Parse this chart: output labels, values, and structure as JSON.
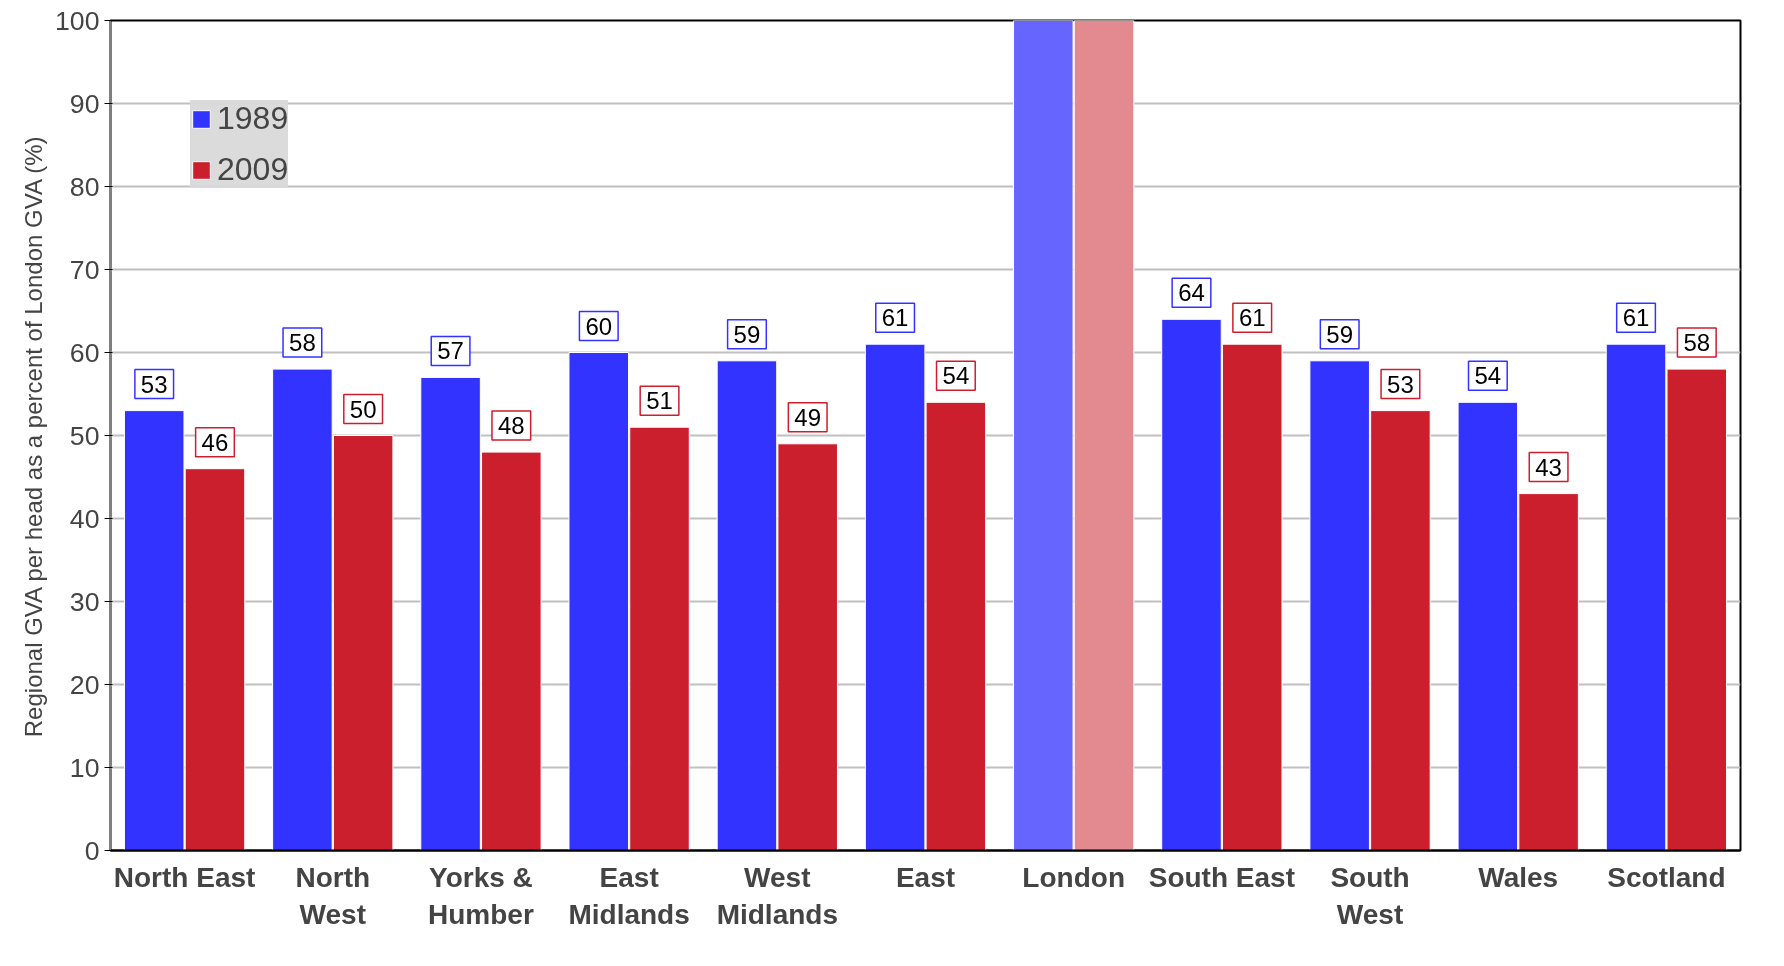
{
  "chart_data": {
    "type": "bar",
    "ylabel": "Regional GVA per head as a percent of London GVA (%)",
    "categories": [
      "North East",
      "North\nWest",
      "Yorks &\nHumber",
      "East\nMidlands",
      "West\nMidlands",
      "East",
      "London",
      "South East",
      "South\nWest",
      "Wales",
      "Scotland"
    ],
    "series": [
      {
        "name": "1989",
        "color": "#3333ff",
        "colors": [
          "#3333ff",
          "#3333ff",
          "#3333ff",
          "#3333ff",
          "#3333ff",
          "#3333ff",
          "#6666ff",
          "#3333ff",
          "#3333ff",
          "#3333ff",
          "#3333ff"
        ],
        "values": [
          53,
          58,
          57,
          60,
          59,
          61,
          100,
          64,
          59,
          54,
          61
        ],
        "value_labels": [
          "53",
          "58",
          "57",
          "60",
          "59",
          "61",
          null,
          "64",
          "59",
          "54",
          "61"
        ]
      },
      {
        "name": "2009",
        "color": "#cc1f2e",
        "colors": [
          "#cc1f2e",
          "#cc1f2e",
          "#cc1f2e",
          "#cc1f2e",
          "#cc1f2e",
          "#cc1f2e",
          "#e38a91",
          "#cc1f2e",
          "#cc1f2e",
          "#cc1f2e",
          "#cc1f2e"
        ],
        "values": [
          46,
          50,
          48,
          51,
          49,
          54,
          100,
          61,
          53,
          43,
          58
        ],
        "value_labels": [
          "46",
          "50",
          "48",
          "51",
          "49",
          "54",
          null,
          "61",
          "53",
          "43",
          "58"
        ]
      }
    ],
    "ylim": [
      0,
      100
    ],
    "yticks": [
      0,
      10,
      20,
      30,
      40,
      50,
      60,
      70,
      80,
      90,
      100
    ],
    "grid": "y",
    "legend": "top left"
  }
}
